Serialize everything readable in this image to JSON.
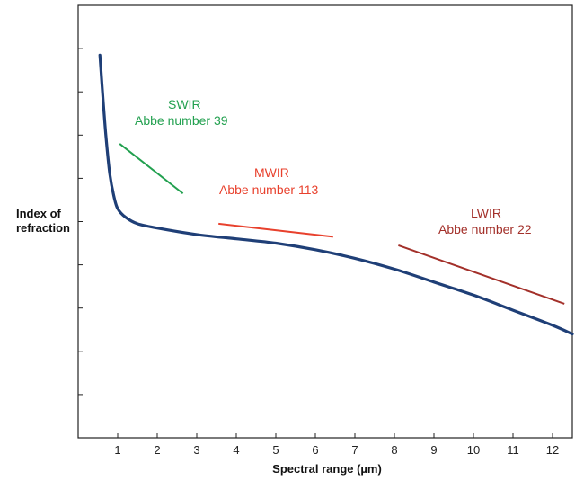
{
  "chart_data": {
    "type": "line",
    "xlabel": "Spectral range (µm)",
    "ylabel_lines": [
      "Index of",
      "refraction"
    ],
    "xlim": [
      0,
      12.5
    ],
    "ylim": [
      0,
      10
    ],
    "x_ticks": [
      1,
      2,
      3,
      4,
      5,
      6,
      7,
      8,
      9,
      10,
      11,
      12
    ],
    "y_tick_count": 9,
    "y_tick_labels_shown": false,
    "grid": false,
    "legend": "none",
    "series": [
      {
        "color": "#1f3f77",
        "x": [
          0.55,
          0.6,
          0.7,
          0.8,
          0.9,
          1.0,
          1.2,
          1.5,
          2.0,
          3.0,
          4.0,
          5.0,
          6.0,
          7.0,
          8.0,
          9.0,
          10.0,
          11.0,
          12.0,
          12.5
        ],
        "y": [
          8.85,
          8.2,
          7.0,
          6.1,
          5.6,
          5.3,
          5.1,
          4.95,
          4.85,
          4.7,
          4.6,
          4.5,
          4.35,
          4.15,
          3.9,
          3.6,
          3.3,
          2.95,
          2.6,
          2.4
        ]
      }
    ],
    "segments": [
      {
        "id": "swir",
        "label": "SWIR",
        "sublabel": "Abbe number 39",
        "color": "#22a04f",
        "x1": 1.05,
        "y1": 6.8,
        "x2": 2.65,
        "y2": 5.65
      },
      {
        "id": "mwir",
        "label": "MWIR",
        "sublabel": "Abbe number 113",
        "color": "#e8412d",
        "x1": 3.55,
        "y1": 4.95,
        "x2": 6.45,
        "y2": 4.65
      },
      {
        "id": "lwir",
        "label": "LWIR",
        "sublabel": "Abbe number 22",
        "color": "#a3302a",
        "x1": 8.1,
        "y1": 4.45,
        "x2": 12.3,
        "y2": 3.1
      }
    ]
  }
}
